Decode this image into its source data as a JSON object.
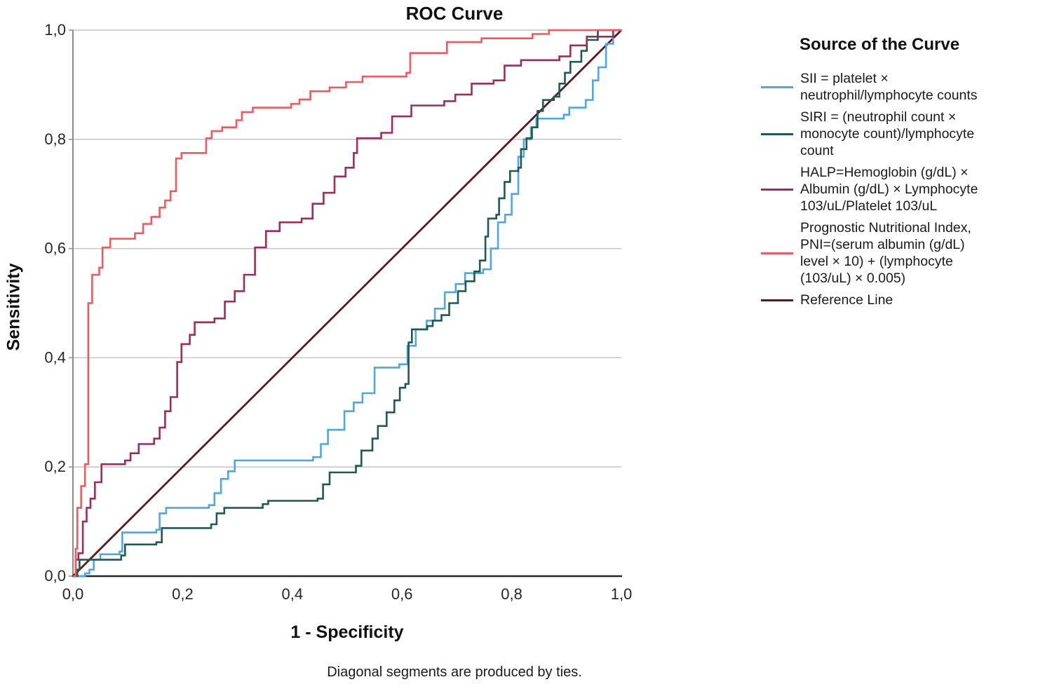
{
  "title": "ROC Curve",
  "y_axis": {
    "label": "Sensitivity",
    "ticks": [
      "0,0",
      "0,2",
      "0,4",
      "0,6",
      "0,8",
      "1,0"
    ]
  },
  "x_axis": {
    "label": "1 - Specificity",
    "ticks": [
      "0,0",
      "0,2",
      "0,4",
      "0,6",
      "0,8",
      "1,0"
    ]
  },
  "footnote": "Diagonal segments are produced by ties.",
  "legend": {
    "title": "Source of the Curve",
    "items": [
      {
        "label": "SII = platelet ×\nneutrophil/lymphocyte counts",
        "color": "#4ea6e9"
      },
      {
        "label": "SIRI = (neutrophil count ×\nmonocyte count)/lymphocyte\ncount",
        "color": "#1d5a52"
      },
      {
        "label": "HALP=Hemoglobin (g/dL) ×\nAlbumin (g/dL) × Lymphocyte\n103/uL/Platelet 103/uL",
        "color": "#a3285c"
      },
      {
        "label": "Prognostic Nutritional Index,\nPNI=(serum albumin (g/dL)\nlevel × 10) + (lymphocyte\n(103/uL) × 0.005)",
        "color": "#f4585d"
      },
      {
        "label": "Reference Line",
        "color": "#5a181c"
      }
    ]
  },
  "colors": {
    "grid": "#c4c4c4",
    "y_axis_line": "#8c8c8c",
    "x_axis_line": "#262626",
    "tick_text": "#262626"
  },
  "chart_data": {
    "type": "line",
    "subtype": "roc-step",
    "title": "ROC Curve",
    "xlabel": "1 - Specificity",
    "ylabel": "Sensitivity",
    "xlim": [
      0,
      1
    ],
    "ylim": [
      0,
      1
    ],
    "tick_values": [
      0,
      0.2,
      0.4,
      0.6,
      0.8,
      1.0
    ],
    "grid": "horizontal",
    "legend_position": "right",
    "series": [
      {
        "name": "Reference Line",
        "color": "#5a181c",
        "step": false,
        "width": 2.8,
        "points": [
          [
            0,
            0
          ],
          [
            1,
            1
          ]
        ]
      },
      {
        "name": "SII",
        "color": "#4ea6e9",
        "step": true,
        "width": 2.6,
        "points": [
          [
            0,
            0
          ],
          [
            0.022,
            0.005
          ],
          [
            0.03,
            0.012
          ],
          [
            0.038,
            0.03
          ],
          [
            0.05,
            0.04
          ],
          [
            0.085,
            0.045
          ],
          [
            0.09,
            0.08
          ],
          [
            0.152,
            0.085
          ],
          [
            0.158,
            0.115
          ],
          [
            0.17,
            0.125
          ],
          [
            0.248,
            0.13
          ],
          [
            0.258,
            0.152
          ],
          [
            0.27,
            0.178
          ],
          [
            0.283,
            0.192
          ],
          [
            0.295,
            0.212
          ],
          [
            0.438,
            0.218
          ],
          [
            0.452,
            0.242
          ],
          [
            0.465,
            0.268
          ],
          [
            0.495,
            0.302
          ],
          [
            0.512,
            0.318
          ],
          [
            0.528,
            0.335
          ],
          [
            0.55,
            0.382
          ],
          [
            0.595,
            0.388
          ],
          [
            0.61,
            0.422
          ],
          [
            0.625,
            0.452
          ],
          [
            0.645,
            0.468
          ],
          [
            0.66,
            0.49
          ],
          [
            0.678,
            0.52
          ],
          [
            0.698,
            0.535
          ],
          [
            0.715,
            0.555
          ],
          [
            0.748,
            0.562
          ],
          [
            0.762,
            0.6
          ],
          [
            0.775,
            0.648
          ],
          [
            0.788,
            0.662
          ],
          [
            0.8,
            0.7
          ],
          [
            0.812,
            0.768
          ],
          [
            0.822,
            0.8
          ],
          [
            0.835,
            0.822
          ],
          [
            0.845,
            0.838
          ],
          [
            0.895,
            0.845
          ],
          [
            0.905,
            0.858
          ],
          [
            0.935,
            0.872
          ],
          [
            0.948,
            0.908
          ],
          [
            0.958,
            0.932
          ],
          [
            0.972,
            0.975
          ],
          [
            0.985,
            1
          ],
          [
            1,
            1
          ]
        ]
      },
      {
        "name": "SIRI",
        "color": "#1d5a52",
        "step": true,
        "width": 2.6,
        "points": [
          [
            0,
            0
          ],
          [
            0.008,
            0.012
          ],
          [
            0.012,
            0.03
          ],
          [
            0.088,
            0.038
          ],
          [
            0.095,
            0.058
          ],
          [
            0.152,
            0.062
          ],
          [
            0.162,
            0.088
          ],
          [
            0.252,
            0.095
          ],
          [
            0.262,
            0.115
          ],
          [
            0.276,
            0.125
          ],
          [
            0.346,
            0.132
          ],
          [
            0.356,
            0.138
          ],
          [
            0.446,
            0.142
          ],
          [
            0.456,
            0.168
          ],
          [
            0.468,
            0.19
          ],
          [
            0.516,
            0.202
          ],
          [
            0.526,
            0.23
          ],
          [
            0.546,
            0.252
          ],
          [
            0.556,
            0.275
          ],
          [
            0.572,
            0.3
          ],
          [
            0.586,
            0.322
          ],
          [
            0.596,
            0.345
          ],
          [
            0.606,
            0.352
          ],
          [
            0.612,
            0.428
          ],
          [
            0.618,
            0.452
          ],
          [
            0.646,
            0.458
          ],
          [
            0.656,
            0.468
          ],
          [
            0.672,
            0.478
          ],
          [
            0.686,
            0.5
          ],
          [
            0.702,
            0.522
          ],
          [
            0.716,
            0.54
          ],
          [
            0.732,
            0.558
          ],
          [
            0.742,
            0.578
          ],
          [
            0.752,
            0.622
          ],
          [
            0.757,
            0.655
          ],
          [
            0.772,
            0.662
          ],
          [
            0.777,
            0.692
          ],
          [
            0.787,
            0.722
          ],
          [
            0.797,
            0.742
          ],
          [
            0.812,
            0.748
          ],
          [
            0.817,
            0.782
          ],
          [
            0.827,
            0.802
          ],
          [
            0.837,
            0.822
          ],
          [
            0.847,
            0.852
          ],
          [
            0.857,
            0.872
          ],
          [
            0.877,
            0.878
          ],
          [
            0.887,
            0.902
          ],
          [
            0.897,
            0.922
          ],
          [
            0.907,
            0.942
          ],
          [
            0.927,
            0.962
          ],
          [
            0.937,
            0.982
          ],
          [
            0.957,
            1
          ],
          [
            1,
            1
          ]
        ]
      },
      {
        "name": "HALP",
        "color": "#a3285c",
        "step": true,
        "width": 2.6,
        "points": [
          [
            0,
            0
          ],
          [
            0.005,
            0.03
          ],
          [
            0.01,
            0.042
          ],
          [
            0.018,
            0.1
          ],
          [
            0.025,
            0.125
          ],
          [
            0.032,
            0.142
          ],
          [
            0.04,
            0.172
          ],
          [
            0.052,
            0.205
          ],
          [
            0.095,
            0.212
          ],
          [
            0.105,
            0.225
          ],
          [
            0.12,
            0.242
          ],
          [
            0.148,
            0.252
          ],
          [
            0.158,
            0.272
          ],
          [
            0.168,
            0.302
          ],
          [
            0.178,
            0.328
          ],
          [
            0.19,
            0.392
          ],
          [
            0.198,
            0.425
          ],
          [
            0.213,
            0.442
          ],
          [
            0.222,
            0.465
          ],
          [
            0.258,
            0.472
          ],
          [
            0.277,
            0.503
          ],
          [
            0.295,
            0.522
          ],
          [
            0.312,
            0.552
          ],
          [
            0.332,
            0.602
          ],
          [
            0.352,
            0.632
          ],
          [
            0.377,
            0.648
          ],
          [
            0.417,
            0.655
          ],
          [
            0.437,
            0.682
          ],
          [
            0.457,
            0.702
          ],
          [
            0.477,
            0.732
          ],
          [
            0.497,
            0.748
          ],
          [
            0.512,
            0.775
          ],
          [
            0.518,
            0.802
          ],
          [
            0.562,
            0.812
          ],
          [
            0.582,
            0.842
          ],
          [
            0.617,
            0.862
          ],
          [
            0.677,
            0.87
          ],
          [
            0.697,
            0.882
          ],
          [
            0.727,
            0.902
          ],
          [
            0.767,
            0.908
          ],
          [
            0.787,
            0.935
          ],
          [
            0.817,
            0.945
          ],
          [
            0.887,
            0.952
          ],
          [
            0.907,
            0.972
          ],
          [
            0.937,
            0.988
          ],
          [
            0.985,
            1
          ],
          [
            1,
            1
          ]
        ]
      },
      {
        "name": "PNI",
        "color": "#f4585d",
        "step": true,
        "width": 2.6,
        "points": [
          [
            0,
            0
          ],
          [
            0.005,
            0.05
          ],
          [
            0.008,
            0.125
          ],
          [
            0.015,
            0.165
          ],
          [
            0.022,
            0.205
          ],
          [
            0.028,
            0.5
          ],
          [
            0.035,
            0.552
          ],
          [
            0.048,
            0.565
          ],
          [
            0.054,
            0.602
          ],
          [
            0.068,
            0.618
          ],
          [
            0.113,
            0.628
          ],
          [
            0.128,
            0.645
          ],
          [
            0.143,
            0.658
          ],
          [
            0.158,
            0.675
          ],
          [
            0.168,
            0.688
          ],
          [
            0.178,
            0.705
          ],
          [
            0.188,
            0.765
          ],
          [
            0.198,
            0.775
          ],
          [
            0.243,
            0.802
          ],
          [
            0.253,
            0.815
          ],
          [
            0.272,
            0.822
          ],
          [
            0.298,
            0.835
          ],
          [
            0.308,
            0.85
          ],
          [
            0.328,
            0.858
          ],
          [
            0.398,
            0.865
          ],
          [
            0.413,
            0.873
          ],
          [
            0.433,
            0.888
          ],
          [
            0.468,
            0.895
          ],
          [
            0.498,
            0.905
          ],
          [
            0.528,
            0.915
          ],
          [
            0.608,
            0.922
          ],
          [
            0.615,
            0.958
          ],
          [
            0.682,
            0.978
          ],
          [
            0.745,
            0.985
          ],
          [
            0.838,
            0.993
          ],
          [
            0.868,
            1
          ],
          [
            1,
            1
          ]
        ]
      }
    ]
  }
}
